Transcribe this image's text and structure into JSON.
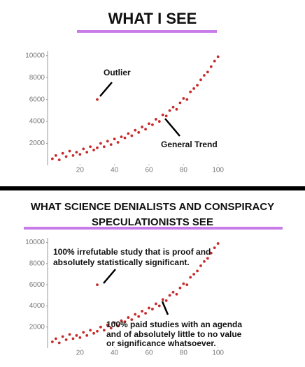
{
  "chart_data": [
    {
      "type": "scatter",
      "title": "WHAT I SEE",
      "x": [
        4,
        6,
        8,
        10,
        12,
        14,
        16,
        18,
        20,
        22,
        24,
        26,
        28,
        30,
        32,
        34,
        36,
        38,
        40,
        42,
        44,
        46,
        48,
        50,
        52,
        54,
        56,
        58,
        60,
        62,
        64,
        66,
        68,
        70,
        72,
        74,
        76,
        78,
        80,
        82,
        84,
        86,
        88,
        90,
        92,
        94,
        96,
        98,
        100,
        30
      ],
      "values": [
        600,
        900,
        500,
        1100,
        800,
        1300,
        900,
        1200,
        1000,
        1500,
        1200,
        1700,
        1400,
        1600,
        2000,
        1700,
        2200,
        1900,
        2400,
        2100,
        2600,
        2500,
        2900,
        2700,
        3200,
        3000,
        3500,
        3300,
        3800,
        3700,
        4200,
        4000,
        4600,
        4500,
        5000,
        5300,
        5100,
        5700,
        6100,
        6000,
        6700,
        7000,
        7300,
        7800,
        8200,
        8500,
        9000,
        9500,
        9900,
        6000
      ],
      "color": "#c62a2a",
      "xlim": [
        0,
        105
      ],
      "ylim": [
        0,
        10300
      ],
      "xticks": [
        20,
        40,
        60,
        80,
        100
      ],
      "yticks": [
        2000,
        4000,
        6000,
        8000,
        10000
      ],
      "annotations": [
        "Outlier",
        "General Trend"
      ]
    },
    {
      "type": "scatter",
      "title": "WHAT SCIENCE DENIALISTS AND CONSPIRACY SPECULATIONISTS SEE",
      "x": [
        4,
        6,
        8,
        10,
        12,
        14,
        16,
        18,
        20,
        22,
        24,
        26,
        28,
        30,
        32,
        34,
        36,
        38,
        40,
        42,
        44,
        46,
        48,
        50,
        52,
        54,
        56,
        58,
        60,
        62,
        64,
        66,
        68,
        70,
        72,
        74,
        76,
        78,
        80,
        82,
        84,
        86,
        88,
        90,
        92,
        94,
        96,
        98,
        100,
        30
      ],
      "values": [
        600,
        900,
        500,
        1100,
        800,
        1300,
        900,
        1200,
        1000,
        1500,
        1200,
        1700,
        1400,
        1600,
        2000,
        1700,
        2200,
        1900,
        2400,
        2100,
        2600,
        2500,
        2900,
        2700,
        3200,
        3000,
        3500,
        3300,
        3800,
        3700,
        4200,
        4000,
        4600,
        4500,
        5000,
        5300,
        5100,
        5700,
        6100,
        6000,
        6700,
        7000,
        7300,
        7800,
        8200,
        8500,
        9000,
        9500,
        9900,
        6000
      ],
      "color": "#c62a2a",
      "xlim": [
        0,
        105
      ],
      "ylim": [
        0,
        10300
      ],
      "xticks": [
        20,
        40,
        60,
        80,
        100
      ],
      "yticks": [
        2000,
        4000,
        6000,
        8000,
        10000
      ],
      "annotations": [
        "100% irrefutable study that is proof and",
        "absolutely statistically significant.",
        "100% paid studies with an agenda",
        "and of absolutely little to no value",
        "or significance whatsoever."
      ]
    }
  ]
}
